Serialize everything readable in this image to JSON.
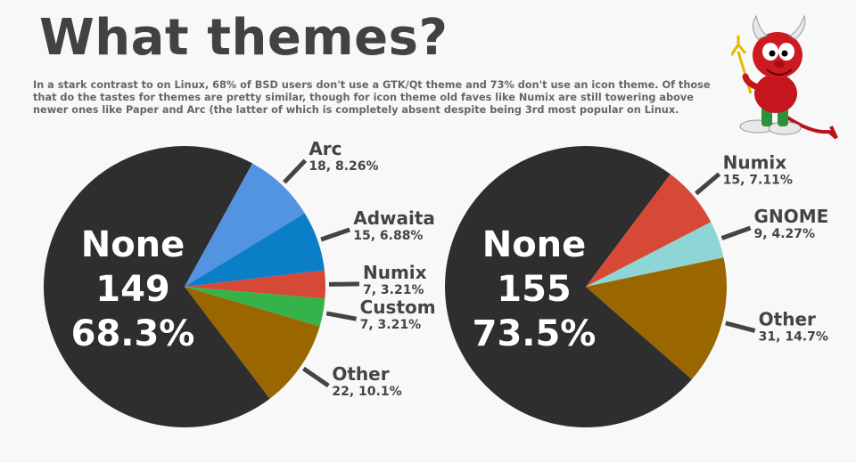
{
  "title": "What themes?",
  "subtitle": "In a stark contrast to on Linux, 68% of BSD users don't use a GTK/Qt theme and 73% don't use an icon theme. Of those that do the tastes for themes are pretty similar, though for icon theme old faves like Numix are still towering above newer ones like Paper and Arc (the latter of which is completely absent despite being 3rd most popular on Linux.",
  "chart_data": [
    {
      "type": "pie",
      "title": "",
      "center_label": {
        "name": "None",
        "count": "149",
        "percent": "68.3%"
      },
      "slices": [
        {
          "name": "None",
          "value": 149,
          "percent": 68.3,
          "label": "",
          "color": "#2e2e2e"
        },
        {
          "name": "Arc",
          "value": 18,
          "percent": 8.26,
          "label": "18, 8.26%",
          "color": "#5294e2"
        },
        {
          "name": "Adwaita",
          "value": 15,
          "percent": 6.88,
          "label": "15, 6.88%",
          "color": "#0a7fc8"
        },
        {
          "name": "Numix",
          "value": 7,
          "percent": 3.21,
          "label": "7, 3.21%",
          "color": "#d64937"
        },
        {
          "name": "Custom",
          "value": 7,
          "percent": 3.21,
          "label": "7, 3.21%",
          "color": "#35b34a"
        },
        {
          "name": "Other",
          "value": 22,
          "percent": 10.1,
          "label": "22, 10.1%",
          "color": "#996600"
        }
      ]
    },
    {
      "type": "pie",
      "title": "",
      "center_label": {
        "name": "None",
        "count": "155",
        "percent": "73.5%"
      },
      "slices": [
        {
          "name": "None",
          "value": 155,
          "percent": 73.5,
          "label": "",
          "color": "#2e2e2e"
        },
        {
          "name": "Numix",
          "value": 15,
          "percent": 7.11,
          "label": "15, 7.11%",
          "color": "#d64937"
        },
        {
          "name": "GNOME",
          "value": 9,
          "percent": 4.27,
          "label": "9, 4.27%",
          "color": "#8ed6d6"
        },
        {
          "name": "Other",
          "value": 31,
          "percent": 14.7,
          "label": "31, 14.7%",
          "color": "#996600"
        }
      ]
    }
  ],
  "mascot": {
    "icon": "bsd-daemon-icon"
  }
}
